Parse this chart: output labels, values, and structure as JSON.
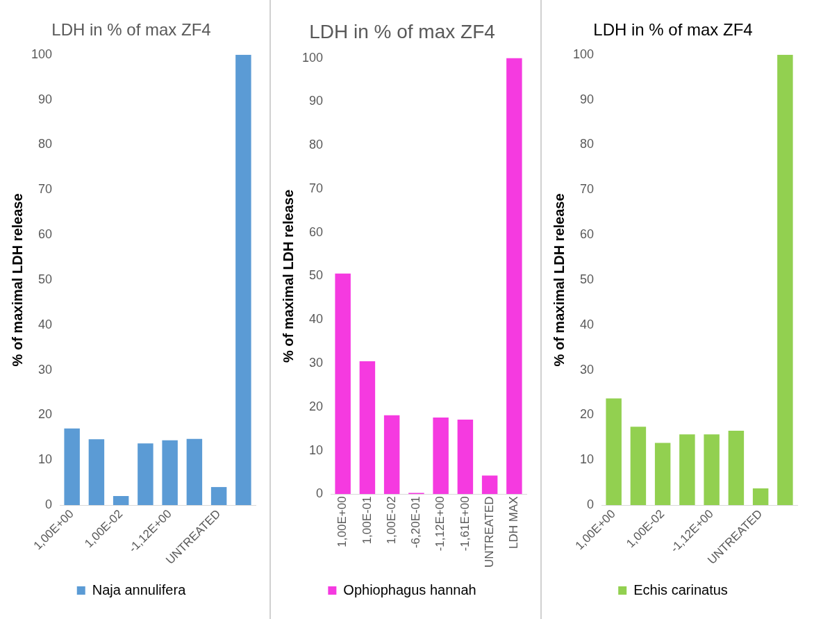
{
  "chart_data": [
    {
      "type": "bar",
      "title": "LDH in % of max ZF4",
      "ylabel": "% of maximal LDH release",
      "categories": [
        "1,00E+00",
        null,
        "1,00E-02",
        null,
        "-1,12E+00",
        null,
        "UNTREATED",
        null
      ],
      "series": [
        {
          "name": "Naja annulifera",
          "color": "#5b9bd5",
          "values": [
            17,
            14.6,
            2,
            13.7,
            14.4,
            14.7,
            4,
            100
          ]
        }
      ],
      "ylim": [
        0,
        100
      ],
      "yticks": [
        0,
        10,
        20,
        30,
        40,
        50,
        60,
        70,
        80,
        90,
        100
      ],
      "grid": false,
      "legend": "bottom"
    },
    {
      "type": "bar",
      "title": "LDH in % of max ZF4",
      "ylabel": "% of maximal LDH release",
      "categories": [
        "1,00E+00",
        "1,00E-01",
        "1,00E-02",
        "-6,20E-01",
        "-1,12E+00",
        "-1,61E+00",
        "UNTREATED",
        "LDH MAX"
      ],
      "series": [
        {
          "name": "Ophiophagus hannah",
          "color": "#f53ae0",
          "values": [
            50.6,
            30.5,
            18.1,
            0.3,
            17.6,
            17.1,
            4.3,
            100
          ]
        }
      ],
      "ylim": [
        0,
        100
      ],
      "yticks": [
        0,
        10,
        20,
        30,
        40,
        50,
        60,
        70,
        80,
        90,
        100
      ],
      "grid": false,
      "legend": "bottom"
    },
    {
      "type": "bar",
      "title": "LDH in % of max ZF4",
      "ylabel": "% of maximal LDH release",
      "categories": [
        "1,00E+00",
        null,
        "1,00E-02",
        null,
        "-1,12E+00",
        null,
        "UNTREATED",
        null
      ],
      "series": [
        {
          "name": "Echis carinatus",
          "color": "#92d050",
          "values": [
            23.7,
            17.4,
            13.8,
            15.7,
            15.7,
            16.5,
            3.7,
            100
          ]
        }
      ],
      "ylim": [
        0,
        100
      ],
      "yticks": [
        0,
        10,
        20,
        30,
        40,
        50,
        60,
        70,
        80,
        90,
        100
      ],
      "grid": false,
      "legend": "bottom"
    }
  ]
}
